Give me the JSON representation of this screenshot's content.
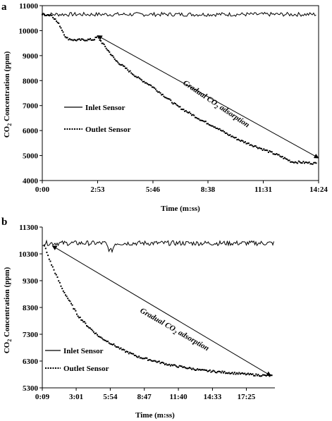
{
  "chart_data": [
    {
      "type": "line",
      "panel": "a",
      "xlabel": "Time (m:ss)",
      "ylabel": "CO₂ Concentration (ppm)",
      "x_tick_labels": [
        "0:00",
        "2:53",
        "5:46",
        "8:38",
        "11:31",
        "14:24"
      ],
      "x_ticks_seconds": [
        0,
        173,
        346,
        518,
        691,
        864
      ],
      "xlim_seconds": [
        0,
        864
      ],
      "y_ticks": [
        4000,
        5000,
        6000,
        7000,
        8000,
        9000,
        10000,
        11000
      ],
      "ylim": [
        4000,
        11000
      ],
      "grid": false,
      "legend_position": "left-middle",
      "annotation": {
        "text_prefix": "Gradual CO",
        "text_sub": "2",
        "text_suffix": " adsorption"
      },
      "arrow": {
        "from": [
          173,
          9800
        ],
        "to": [
          864,
          4900
        ]
      },
      "series": [
        {
          "name": "Inlet Sensor",
          "style": "solid",
          "x_seconds": [
            0,
            860
          ],
          "values": [
            10650,
            10650
          ],
          "noise": 80
        },
        {
          "name": "Outlet Sensor",
          "style": "dotted",
          "x_seconds": [
            0,
            30,
            55,
            75,
            100,
            130,
            160,
            173,
            200,
            230,
            260,
            300,
            340,
            380,
            420,
            460,
            500,
            540,
            580,
            620,
            660,
            700,
            740,
            780,
            820,
            860
          ],
          "values": [
            10650,
            10620,
            10200,
            9700,
            9620,
            9630,
            9640,
            9750,
            9300,
            8800,
            8500,
            8100,
            7800,
            7400,
            7000,
            6700,
            6400,
            6150,
            5850,
            5600,
            5400,
            5200,
            5000,
            4750,
            4720,
            4680
          ]
        }
      ]
    },
    {
      "type": "line",
      "panel": "b",
      "xlabel": "Time (m:ss)",
      "ylabel": "CO₂ Concentration (ppm)",
      "x_tick_labels": [
        "0:09",
        "3:01",
        "5:54",
        "8:47",
        "11:40",
        "14:33",
        "17:25"
      ],
      "x_ticks_seconds": [
        9,
        181,
        354,
        527,
        700,
        873,
        1045
      ],
      "xlim_seconds": [
        9,
        1190
      ],
      "y_ticks": [
        5300,
        6300,
        7300,
        8300,
        9300,
        10300,
        11300
      ],
      "ylim": [
        5300,
        11300
      ],
      "grid": false,
      "legend_position": "bottom-left",
      "annotation": {
        "text_prefix": "Gradual CO",
        "text_sub": "2",
        "text_suffix": " adsorption"
      },
      "arrow": {
        "from": [
          60,
          10600
        ],
        "to": [
          1170,
          5750
        ]
      },
      "series": [
        {
          "name": "Inlet Sensor",
          "style": "solid",
          "x_seconds": [
            9,
            330,
            345,
            355,
            365,
            380,
            1185
          ],
          "values": [
            10700,
            10700,
            10500,
            10400,
            10450,
            10700,
            10700
          ],
          "noise": 90
        },
        {
          "name": "Outlet Sensor",
          "style": "dotted",
          "x_seconds": [
            20,
            50,
            80,
            110,
            150,
            190,
            240,
            300,
            360,
            420,
            500,
            580,
            660,
            740,
            820,
            900,
            980,
            1060,
            1140,
            1180
          ],
          "values": [
            10600,
            10000,
            9500,
            9000,
            8500,
            8000,
            7600,
            7200,
            6950,
            6700,
            6450,
            6300,
            6150,
            6050,
            5950,
            5900,
            5850,
            5800,
            5760,
            5750
          ]
        }
      ]
    }
  ]
}
